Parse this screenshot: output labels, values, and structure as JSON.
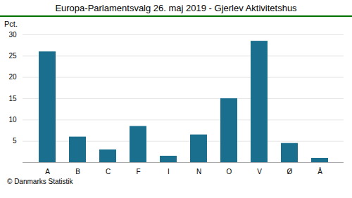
{
  "chart_data": {
    "type": "bar",
    "title": "Europa-Parlamentsvalg 26. maj 2019 - Gjerlev Aktivitetshus",
    "categories": [
      "A",
      "B",
      "C",
      "F",
      "I",
      "N",
      "O",
      "V",
      "Ø",
      "Å"
    ],
    "values": [
      26.0,
      6.0,
      3.0,
      8.5,
      1.5,
      6.5,
      15.0,
      28.5,
      4.5,
      1.0
    ],
    "color": "#1a6e8e",
    "ylabel": "Pct.",
    "annotation": "© Danmarks Statistik",
    "ylim": [
      0,
      30
    ],
    "yticks": [
      5,
      10,
      15,
      20,
      25,
      30
    ],
    "grid": true
  }
}
